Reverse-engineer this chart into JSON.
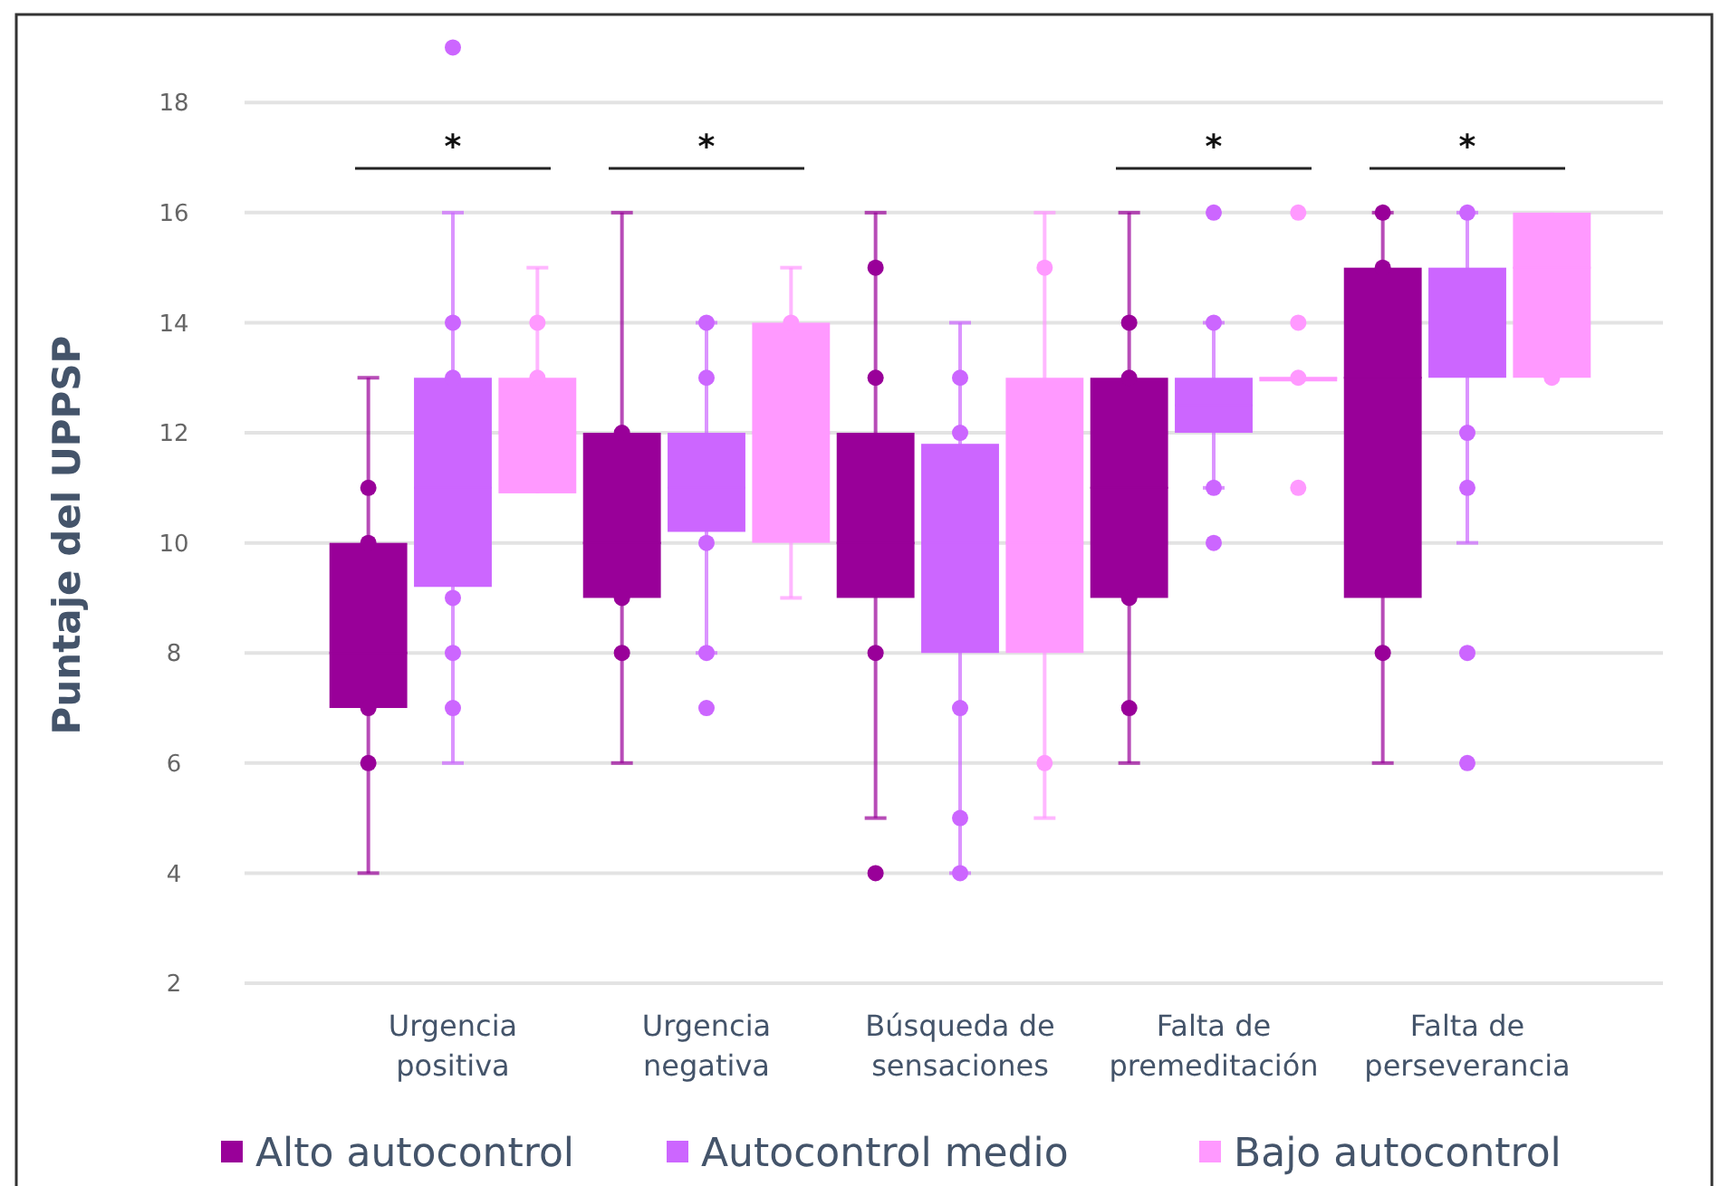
{
  "chart_data": {
    "type": "box",
    "ylabel": "Puntaje del UPPSP",
    "categories": [
      "Urgencia positiva",
      "Urgencia negativa",
      "Búsqueda de sensaciones",
      "Falta de premeditación",
      "Falta de perseverancia"
    ],
    "ylim": [
      2,
      19.6
    ],
    "yticks": [
      2,
      4,
      6,
      8,
      10,
      12,
      14,
      16,
      18
    ],
    "grid": "y",
    "legend": "bottom",
    "series": [
      {
        "name": "Alto autocontrol",
        "color": "#990099",
        "boxes": [
          {
            "low": 4,
            "q1": 7,
            "median": 8,
            "q3": 10,
            "high": 13,
            "outliers": [
              11,
              10,
              7,
              6
            ]
          },
          {
            "low": 6,
            "q1": 9,
            "median": 10,
            "q3": 12,
            "high": 16,
            "outliers": [
              12,
              9,
              8
            ]
          },
          {
            "low": 5,
            "q1": 9,
            "median": 10,
            "q3": 12,
            "high": 16,
            "outliers": [
              15,
              13,
              8,
              4
            ]
          },
          {
            "low": 6,
            "q1": 9,
            "median": 11,
            "q3": 13,
            "high": 16,
            "outliers": [
              14,
              13,
              9,
              7
            ]
          },
          {
            "low": 6,
            "q1": 9,
            "median": 13,
            "q3": 15,
            "high": 16,
            "outliers": [
              16,
              15,
              8
            ]
          }
        ]
      },
      {
        "name": "Autocontrol medio",
        "color": "#cc66ff",
        "boxes": [
          {
            "low": 6,
            "q1": 9.2,
            "median": 11,
            "q3": 13,
            "high": 16,
            "outliers": [
              19,
              14,
              13,
              9,
              8,
              7
            ]
          },
          {
            "low": 8,
            "q1": 10.2,
            "median": 11,
            "q3": 12,
            "high": 14,
            "outliers": [
              14,
              13,
              10,
              8,
              7
            ]
          },
          {
            "low": 4,
            "q1": 8,
            "median": 10,
            "q3": 11.8,
            "high": 14,
            "outliers": [
              13,
              12,
              7,
              5,
              4
            ]
          },
          {
            "low": 11,
            "q1": 12,
            "median": 12.5,
            "q3": 13,
            "high": 14,
            "outliers": [
              16,
              14,
              11,
              10
            ]
          },
          {
            "low": 10,
            "q1": 13,
            "median": 14,
            "q3": 15,
            "high": 16,
            "outliers": [
              16,
              12,
              11,
              8,
              6
            ]
          }
        ]
      },
      {
        "name": "Bajo autocontrol",
        "color": "#ff99ff",
        "boxes": [
          {
            "low": 10.9,
            "q1": 10.9,
            "median": 12,
            "q3": 13,
            "high": 15,
            "outliers": [
              14,
              13
            ]
          },
          {
            "low": 9,
            "q1": 10,
            "median": 12,
            "q3": 14,
            "high": 15,
            "outliers": [
              14
            ]
          },
          {
            "low": 5,
            "q1": 8,
            "median": 10,
            "q3": 13,
            "high": 16,
            "outliers": [
              15,
              6
            ]
          },
          {
            "low": 13,
            "q1": 13,
            "median": 13,
            "q3": 13,
            "high": 13,
            "outliers": [
              16,
              14,
              13,
              11
            ]
          },
          {
            "low": 13,
            "q1": 13,
            "median": 15,
            "q3": 16,
            "high": 16,
            "outliers": [
              13
            ]
          }
        ]
      }
    ],
    "annotations": [
      "*",
      "*",
      "*",
      "*"
    ]
  }
}
